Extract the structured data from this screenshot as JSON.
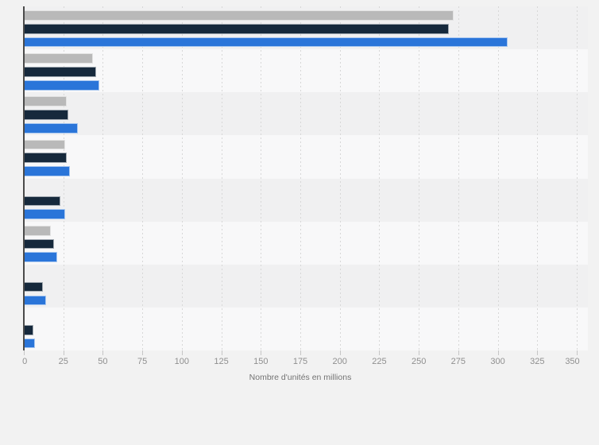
{
  "chart_data": {
    "type": "bar",
    "orientation": "horizontal",
    "grouped": true,
    "title": "",
    "xlabel": "Nombre d'unités en millions",
    "ylabel": "",
    "xlim": [
      0,
      350
    ],
    "x_ticks": [
      0,
      25,
      50,
      75,
      100,
      125,
      150,
      175,
      200,
      225,
      250,
      275,
      300,
      325,
      350
    ],
    "grid": "vertical dashed gridlines every 25 units",
    "legend_position": "none",
    "category_labels_visible": false,
    "categories": [
      "",
      "",
      "",
      "",
      "",
      "",
      "",
      ""
    ],
    "series": [
      {
        "name": "series-gray",
        "color": "#b9b9b9",
        "values": [
          272,
          44,
          27,
          26,
          null,
          17,
          null,
          null
        ]
      },
      {
        "name": "series-darkblue",
        "color": "#16293c",
        "values": [
          269,
          46,
          28,
          27,
          23,
          19,
          12,
          6
        ]
      },
      {
        "name": "series-blue",
        "color": "#2a75d9",
        "values": [
          306,
          48,
          34,
          29,
          26,
          21,
          14,
          7
        ]
      }
    ]
  },
  "style": {
    "page_bg": "#f2f2f2",
    "band_odd": "#f0f0f1",
    "band_even": "#f8f8f9",
    "gridline_color": "#d7d7d7",
    "axis_line_color": "#4a4a4a",
    "tick_mark_color": "#c6c6c6",
    "tick_label_color": "#8f8f8f",
    "axis_title_color": "#737373"
  }
}
